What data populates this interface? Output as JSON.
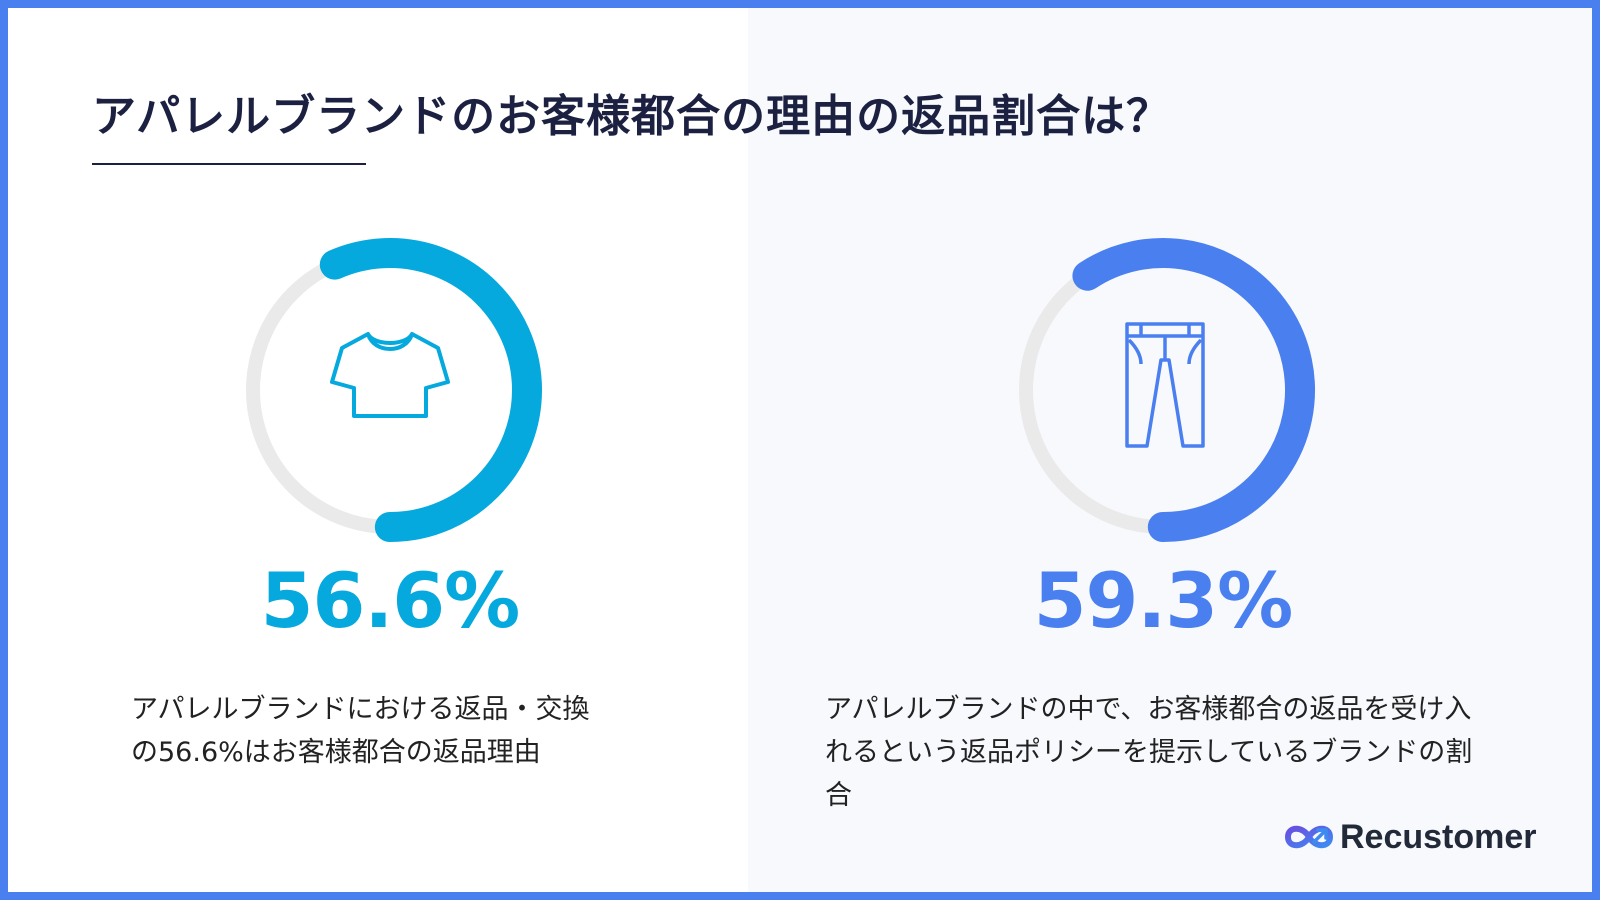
{
  "title": "アパレルブランドのお客様都合の理由の返品割合は？",
  "chart_data": [
    {
      "type": "pie",
      "value": 56.6,
      "unit": "%",
      "label": "56.6%",
      "description": "アパレルブランドにおける返品・交換の56.6%はお客様都合の返品理由",
      "color": "#05a9dd",
      "track_color": "#eaeaea",
      "icon": "t-shirt-icon"
    },
    {
      "type": "pie",
      "value": 59.3,
      "unit": "%",
      "label": "59.3%",
      "description": "アパレルブランドの中で、お客様都合の返品を受け入れるという返品ポリシーを提示しているブランドの割合",
      "color": "#4a7ff0",
      "track_color": "#eaeaea",
      "icon": "pants-icon"
    }
  ],
  "colors": {
    "frame": "#4a7ff0",
    "title": "#1c2142",
    "right_panel_bg": "#f7f9fc"
  },
  "logo": {
    "text": "Recustomer",
    "icon": "recustomer-logo-icon"
  }
}
